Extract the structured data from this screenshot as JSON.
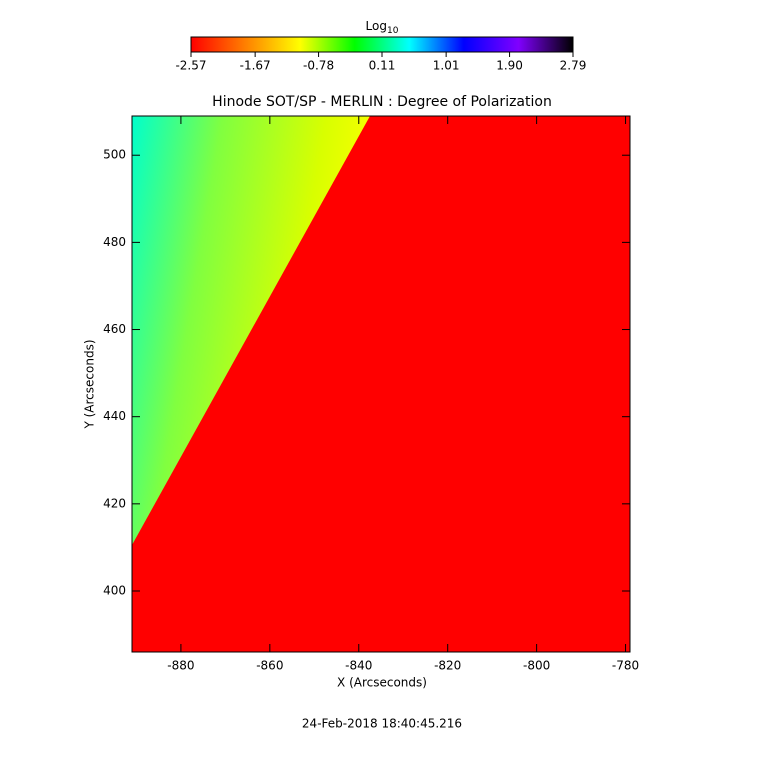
{
  "chart_data": {
    "type": "image",
    "title": "Hinode SOT/SP - MERLIN : Degree of Polarization",
    "x_label": "X (Arcseconds)",
    "y_label": "Y (Arcseconds)",
    "xlim": [
      -891,
      -779
    ],
    "xticks": [
      -880,
      -860,
      -840,
      -820,
      -800,
      -780
    ],
    "ylim": [
      386,
      509
    ],
    "yticks": [
      400,
      420,
      440,
      460,
      480,
      500
    ],
    "colorbar": {
      "label": "Log",
      "label_subscript": "10",
      "lim": [
        -2.57,
        2.79
      ],
      "ticks": [
        -2.57,
        -1.67,
        -0.78,
        0.11,
        1.01,
        {
          "value": 1.9,
          "label": "1.90"
        },
        2.79
      ],
      "colors": [
        "#ff0000",
        "#ff8000",
        "#ffff00",
        "#00ff00",
        "#00ffff",
        "#0000ff",
        "#8000ff",
        "#000000"
      ]
    },
    "footer": "24-Feb-2018 18:40:45.216"
  }
}
